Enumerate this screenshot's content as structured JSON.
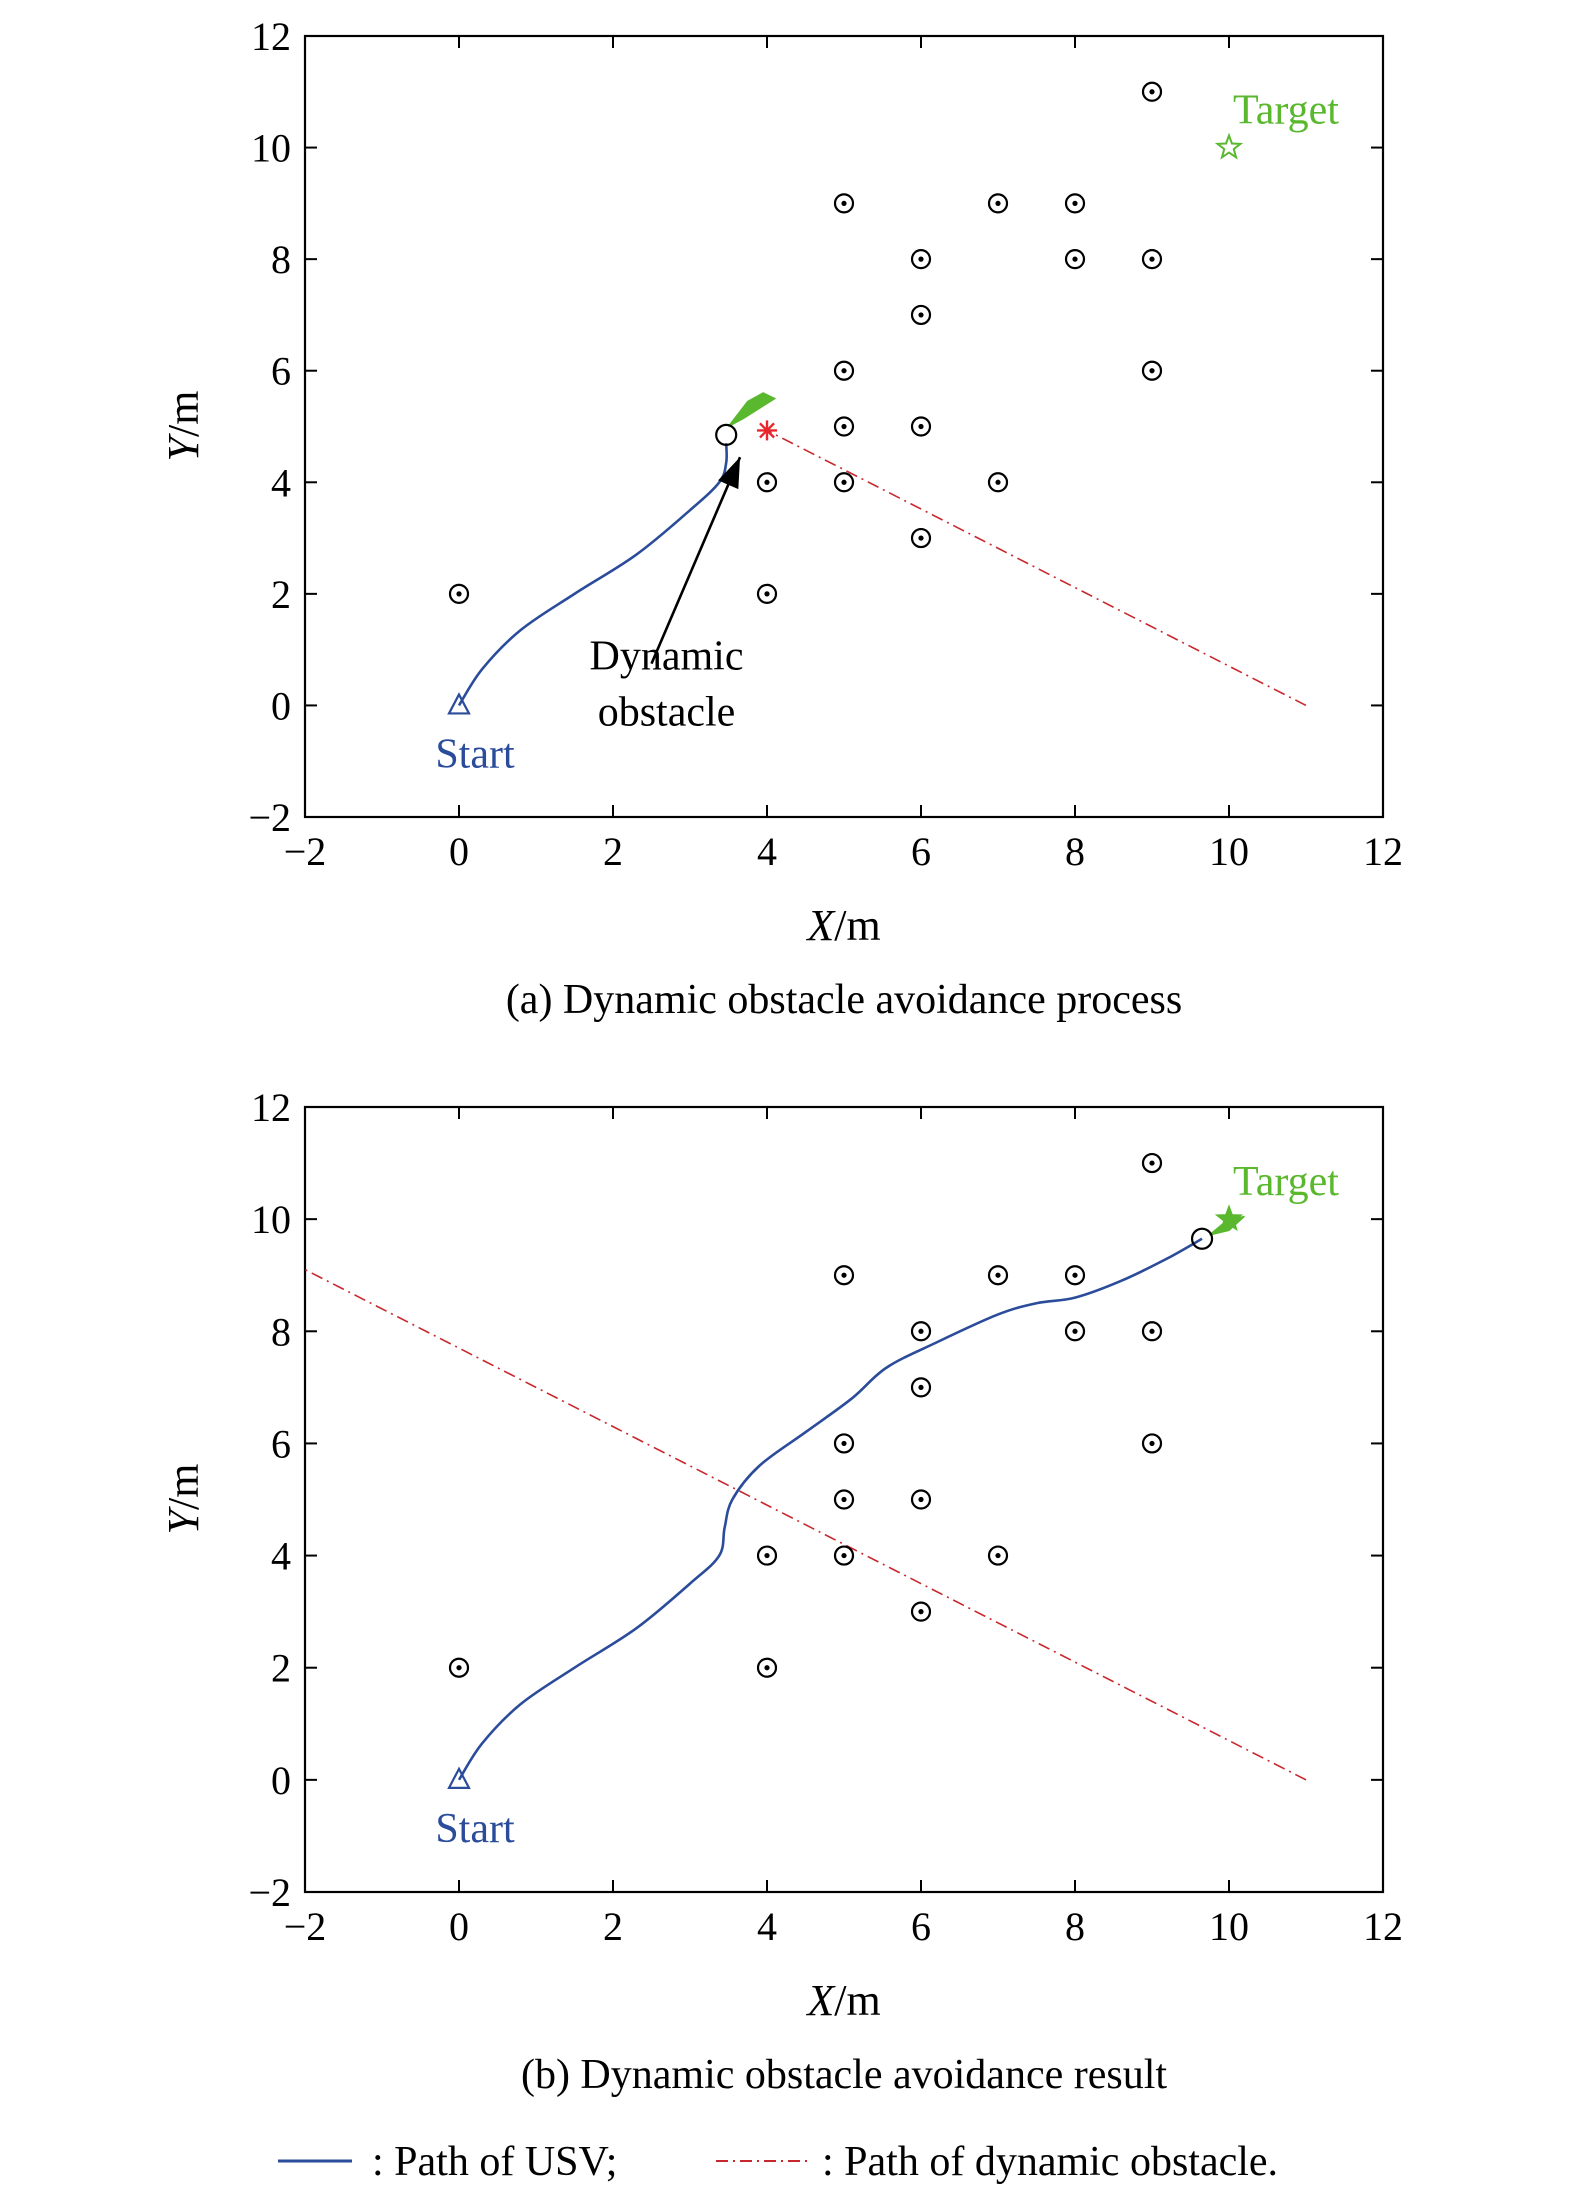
{
  "colors": {
    "usv_path": "#2b4c9b",
    "dynamic_path": "#c8282d",
    "target": "#5ab82e",
    "start": "#2b4c9b",
    "obstacle": "#000000",
    "annotation": "#000000",
    "dynamic_marker": "#e8262c"
  },
  "legend": {
    "usv_label": ": Path of USV;",
    "dynamic_label": ": Path of dynamic obstacle."
  },
  "chart_data": [
    {
      "type": "line",
      "id": "a",
      "caption": "(a) Dynamic obstacle avoidance process",
      "xlabel_var": "X",
      "xlabel_unit": "/m",
      "ylabel_var": "Y",
      "ylabel_unit": "/m",
      "xlim": [
        -2,
        12
      ],
      "ylim": [
        -2,
        12
      ],
      "xticks": [
        -2,
        0,
        2,
        4,
        6,
        8,
        10,
        12
      ],
      "yticks": [
        -2,
        0,
        2,
        4,
        6,
        8,
        10,
        12
      ],
      "xtick_labels": [
        "−2",
        "0",
        "2",
        "4",
        "6",
        "8",
        "10",
        "12"
      ],
      "ytick_labels": [
        "−2",
        "0",
        "2",
        "4",
        "6",
        "8",
        "10",
        "12"
      ],
      "start": {
        "x": 0,
        "y": 0,
        "label": "Start"
      },
      "target": {
        "x": 10,
        "y": 10,
        "label": "Target"
      },
      "static_obstacles": [
        {
          "x": 0,
          "y": 2
        },
        {
          "x": 4,
          "y": 2
        },
        {
          "x": 4,
          "y": 4
        },
        {
          "x": 5,
          "y": 4
        },
        {
          "x": 5,
          "y": 5
        },
        {
          "x": 5,
          "y": 6
        },
        {
          "x": 5,
          "y": 9
        },
        {
          "x": 6,
          "y": 3
        },
        {
          "x": 6,
          "y": 5
        },
        {
          "x": 6,
          "y": 7
        },
        {
          "x": 6,
          "y": 8
        },
        {
          "x": 7,
          "y": 4
        },
        {
          "x": 7,
          "y": 9
        },
        {
          "x": 8,
          "y": 8
        },
        {
          "x": 8,
          "y": 9
        },
        {
          "x": 9,
          "y": 6
        },
        {
          "x": 9,
          "y": 8
        },
        {
          "x": 9,
          "y": 11
        }
      ],
      "usv_path": [
        {
          "x": 0,
          "y": 0
        },
        {
          "x": 0.3,
          "y": 0.65
        },
        {
          "x": 0.8,
          "y": 1.35
        },
        {
          "x": 1.5,
          "y": 2.0
        },
        {
          "x": 2.3,
          "y": 2.7
        },
        {
          "x": 3.0,
          "y": 3.5
        },
        {
          "x": 3.38,
          "y": 4.0
        },
        {
          "x": 3.47,
          "y": 4.35
        },
        {
          "x": 3.47,
          "y": 4.7
        }
      ],
      "usv_position": {
        "x": 3.47,
        "y": 4.85
      },
      "heading_wedge": [
        {
          "x": 3.5,
          "y": 5.0
        },
        {
          "x": 3.75,
          "y": 5.45
        },
        {
          "x": 3.95,
          "y": 5.6
        },
        {
          "x": 4.1,
          "y": 5.5
        },
        {
          "x": 3.7,
          "y": 5.15
        }
      ],
      "dynamic_path": [
        {
          "x": 11,
          "y": 0
        },
        {
          "x": 4,
          "y": 4.93
        }
      ],
      "dynamic_position": {
        "x": 4,
        "y": 4.93
      },
      "annotation": {
        "line1": "Dynamic",
        "line2": "obstacle"
      },
      "annotation_arrow": {
        "from": {
          "x": 2.5,
          "y": 0.75
        },
        "to": {
          "x": 3.65,
          "y": 4.45
        }
      }
    },
    {
      "type": "line",
      "id": "b",
      "caption": "(b) Dynamic obstacle avoidance result",
      "xlabel_var": "X",
      "xlabel_unit": "/m",
      "ylabel_var": "Y",
      "ylabel_unit": "/m",
      "xlim": [
        -2,
        12
      ],
      "ylim": [
        -2,
        12
      ],
      "xticks": [
        -2,
        0,
        2,
        4,
        6,
        8,
        10,
        12
      ],
      "yticks": [
        -2,
        0,
        2,
        4,
        6,
        8,
        10,
        12
      ],
      "xtick_labels": [
        "−2",
        "0",
        "2",
        "4",
        "6",
        "8",
        "10",
        "12"
      ],
      "ytick_labels": [
        "−2",
        "0",
        "2",
        "4",
        "6",
        "8",
        "10",
        "12"
      ],
      "start": {
        "x": 0,
        "y": 0,
        "label": "Start"
      },
      "target": {
        "x": 10,
        "y": 10,
        "label": "Target"
      },
      "static_obstacles": [
        {
          "x": 0,
          "y": 2
        },
        {
          "x": 4,
          "y": 2
        },
        {
          "x": 4,
          "y": 4
        },
        {
          "x": 5,
          "y": 4
        },
        {
          "x": 5,
          "y": 5
        },
        {
          "x": 5,
          "y": 6
        },
        {
          "x": 5,
          "y": 9
        },
        {
          "x": 6,
          "y": 3
        },
        {
          "x": 6,
          "y": 5
        },
        {
          "x": 6,
          "y": 7
        },
        {
          "x": 6,
          "y": 8
        },
        {
          "x": 7,
          "y": 4
        },
        {
          "x": 7,
          "y": 9
        },
        {
          "x": 8,
          "y": 8
        },
        {
          "x": 8,
          "y": 9
        },
        {
          "x": 9,
          "y": 6
        },
        {
          "x": 9,
          "y": 8
        },
        {
          "x": 9,
          "y": 11
        }
      ],
      "usv_path": [
        {
          "x": 0,
          "y": 0
        },
        {
          "x": 0.3,
          "y": 0.65
        },
        {
          "x": 0.8,
          "y": 1.35
        },
        {
          "x": 1.5,
          "y": 2.0
        },
        {
          "x": 2.3,
          "y": 2.7
        },
        {
          "x": 3.0,
          "y": 3.5
        },
        {
          "x": 3.38,
          "y": 4.0
        },
        {
          "x": 3.45,
          "y": 4.5
        },
        {
          "x": 3.55,
          "y": 5.0
        },
        {
          "x": 3.9,
          "y": 5.6
        },
        {
          "x": 4.5,
          "y": 6.2
        },
        {
          "x": 5.1,
          "y": 6.8
        },
        {
          "x": 5.55,
          "y": 7.35
        },
        {
          "x": 6.2,
          "y": 7.8
        },
        {
          "x": 7.0,
          "y": 8.3
        },
        {
          "x": 7.5,
          "y": 8.5
        },
        {
          "x": 8.0,
          "y": 8.6
        },
        {
          "x": 8.6,
          "y": 8.9
        },
        {
          "x": 9.2,
          "y": 9.3
        },
        {
          "x": 9.65,
          "y": 9.65
        }
      ],
      "usv_position": {
        "x": 9.65,
        "y": 9.65
      },
      "heading_wedge": [
        {
          "x": 9.75,
          "y": 9.72
        },
        {
          "x": 9.95,
          "y": 9.95
        },
        {
          "x": 10.2,
          "y": 10.05
        },
        {
          "x": 10.0,
          "y": 9.8
        }
      ],
      "dynamic_path": [
        {
          "x": 11,
          "y": 0
        },
        {
          "x": -2,
          "y": 9.1
        }
      ]
    }
  ]
}
